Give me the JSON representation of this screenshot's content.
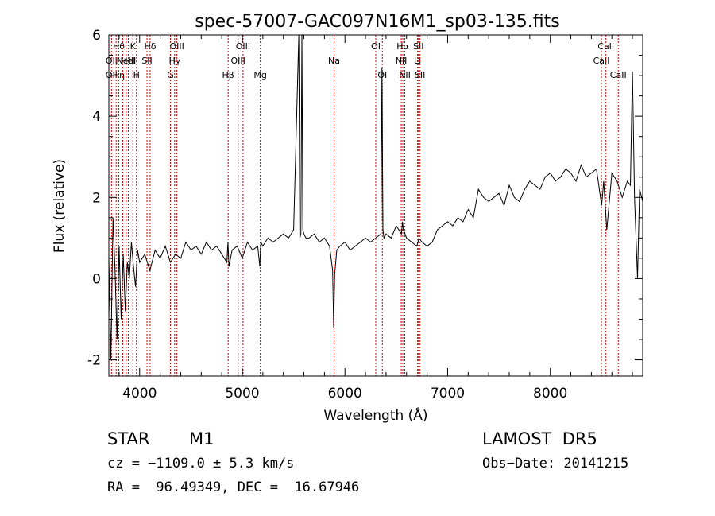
{
  "chart_data": {
    "type": "line",
    "title": "spec-57007-GAC097N16M1_sp03-135.fits",
    "xlabel": "Wavelength (Å)",
    "ylabel": "Flux (relative)",
    "xlim": [
      3700,
      8900
    ],
    "ylim": [
      -2.4,
      6.0
    ],
    "xticks": [
      4000,
      5000,
      6000,
      7000,
      8000
    ],
    "yticks": [
      -2,
      0,
      2,
      4,
      6
    ],
    "grid": false,
    "series": [
      {
        "x": [
          3700,
          3720,
          3740,
          3760,
          3780,
          3800,
          3820,
          3840,
          3860,
          3880,
          3900,
          3920,
          3940,
          3960,
          3980,
          4000,
          4050,
          4100,
          4150,
          4200,
          4250,
          4300,
          4350,
          4400,
          4450,
          4500,
          4550,
          4600,
          4650,
          4700,
          4750,
          4800,
          4850,
          4860,
          4870,
          4900,
          4950,
          5000,
          5050,
          5100,
          5150,
          5170,
          5180,
          5200,
          5250,
          5300,
          5350,
          5400,
          5450,
          5500,
          5550,
          5560,
          5570,
          5580,
          5590,
          5600,
          5620,
          5650,
          5700,
          5750,
          5800,
          5850,
          5880,
          5890,
          5900,
          5920,
          5950,
          6000,
          6050,
          6100,
          6150,
          6200,
          6250,
          6300,
          6350,
          6360,
          6370,
          6380,
          6400,
          6450,
          6500,
          6550,
          6560,
          6570,
          6600,
          6650,
          6700,
          6720,
          6750,
          6800,
          6850,
          6900,
          6950,
          7000,
          7050,
          7100,
          7150,
          7200,
          7250,
          7300,
          7350,
          7400,
          7450,
          7500,
          7550,
          7600,
          7650,
          7700,
          7750,
          7800,
          7850,
          7900,
          7950,
          8000,
          8050,
          8100,
          8150,
          8200,
          8250,
          8300,
          8350,
          8400,
          8450,
          8500,
          8520,
          8550,
          8600,
          8650,
          8700,
          8750,
          8780,
          8800,
          8820,
          8850,
          8870,
          8900
        ],
        "y": [
          0.5,
          -2.0,
          1.5,
          0.2,
          -1.5,
          0.8,
          -1.0,
          0.6,
          -0.8,
          0.4,
          0.0,
          0.9,
          0.3,
          -0.2,
          0.7,
          0.4,
          0.6,
          0.2,
          0.7,
          0.5,
          0.8,
          0.4,
          0.6,
          0.5,
          0.9,
          0.7,
          0.8,
          0.6,
          0.9,
          0.7,
          0.8,
          0.6,
          0.4,
          0.9,
          0.3,
          0.7,
          0.8,
          0.5,
          0.9,
          0.7,
          0.8,
          0.3,
          0.9,
          0.8,
          1.0,
          0.9,
          1.0,
          1.1,
          1.0,
          1.2,
          6.0,
          1.0,
          1.1,
          6.0,
          1.2,
          1.1,
          1.0,
          1.0,
          1.1,
          0.9,
          1.0,
          0.8,
          0.2,
          -1.2,
          0.1,
          0.7,
          0.8,
          0.9,
          0.7,
          0.8,
          0.9,
          1.0,
          0.9,
          1.0,
          1.1,
          5.2,
          1.2,
          1.0,
          1.1,
          1.0,
          1.3,
          1.1,
          1.4,
          1.2,
          1.0,
          0.9,
          0.8,
          1.0,
          0.9,
          0.8,
          0.9,
          1.2,
          1.3,
          1.4,
          1.3,
          1.5,
          1.4,
          1.7,
          1.5,
          2.2,
          2.0,
          1.9,
          2.0,
          2.1,
          1.8,
          2.3,
          2.0,
          1.9,
          2.2,
          2.4,
          2.3,
          2.2,
          2.5,
          2.6,
          2.4,
          2.5,
          2.7,
          2.6,
          2.4,
          2.8,
          2.5,
          2.6,
          2.7,
          1.8,
          2.4,
          1.2,
          2.6,
          2.4,
          2.0,
          2.4,
          2.3,
          5.1,
          2.0,
          0.0,
          2.2,
          1.9
        ]
      }
    ],
    "annotations": [
      {
        "x": 3726,
        "rows": [
          "",
          "OII",
          "OII"
        ]
      },
      {
        "x": 3750,
        "rows": [],
        "lines": true
      },
      {
        "x": 3771,
        "rows": [],
        "lines": true
      },
      {
        "x": 3797,
        "rows": [
          "Hθ",
          "",
          "Hη"
        ]
      },
      {
        "x": 3835,
        "rows": [],
        "lines": true
      },
      {
        "x": 3869,
        "rows": [
          "",
          "NeIII",
          ""
        ]
      },
      {
        "x": 3889,
        "rows": [
          "",
          "HeI",
          ""
        ]
      },
      {
        "x": 3934,
        "rows": [
          "K",
          "",
          ""
        ]
      },
      {
        "x": 3969,
        "rows": [
          "",
          "",
          "H"
        ]
      },
      {
        "x": 4072,
        "rows": [
          "",
          "SII",
          ""
        ]
      },
      {
        "x": 4102,
        "rows": [
          "Hδ",
          "",
          ""
        ]
      },
      {
        "x": 4300,
        "rows": [
          "",
          "",
          "G"
        ]
      },
      {
        "x": 4341,
        "rows": [
          "",
          "Hγ",
          ""
        ]
      },
      {
        "x": 4363,
        "rows": [
          "OIII",
          "",
          ""
        ]
      },
      {
        "x": 4862,
        "rows": [
          "",
          "",
          "Hβ"
        ]
      },
      {
        "x": 4959,
        "rows": [
          "",
          "OIII",
          ""
        ]
      },
      {
        "x": 5007,
        "rows": [
          "OIII",
          "",
          ""
        ]
      },
      {
        "x": 5175,
        "rows": [
          "",
          "",
          "Mg"
        ]
      },
      {
        "x": 5894,
        "rows": [
          "",
          "Na",
          ""
        ]
      },
      {
        "x": 6300,
        "rows": [
          "OI",
          "",
          ""
        ]
      },
      {
        "x": 6364,
        "rows": [
          "",
          "",
          "OI"
        ]
      },
      {
        "x": 6548,
        "rows": [
          "",
          "NII",
          ""
        ]
      },
      {
        "x": 6563,
        "rows": [
          "Hα",
          "",
          ""
        ]
      },
      {
        "x": 6583,
        "rows": [
          "",
          "",
          "NII"
        ]
      },
      {
        "x": 6707,
        "rows": [
          "",
          "Li",
          ""
        ]
      },
      {
        "x": 6716,
        "rows": [
          "SII",
          "",
          ""
        ]
      },
      {
        "x": 6731,
        "rows": [
          "",
          "",
          "SII"
        ]
      },
      {
        "x": 8498,
        "rows": [
          "",
          "CaII",
          ""
        ]
      },
      {
        "x": 8542,
        "rows": [
          "CaII",
          "",
          ""
        ]
      },
      {
        "x": 8662,
        "rows": [
          "",
          "",
          "CaII"
        ]
      }
    ]
  },
  "info": {
    "object_type": "STAR",
    "subclass": "M1",
    "survey": "LAMOST  DR5",
    "cz": "cz = −1109.0 ± 5.3 km/s",
    "obs_date": "Obs−Date: 20141215",
    "radec": "RA =  96.49349, DEC =  16.67946"
  },
  "colors": {
    "line": "#000000",
    "marker_lines": "#cc0000",
    "axes": "#000000",
    "background": "#ffffff"
  }
}
